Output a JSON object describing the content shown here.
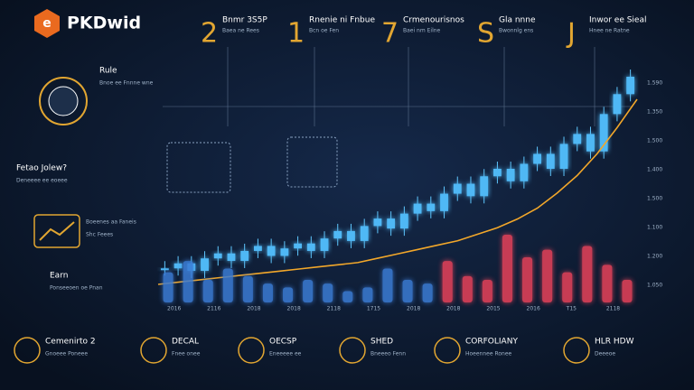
{
  "header": {
    "brand": "PKDwid"
  },
  "top_cards": [
    {
      "numeral": "2",
      "title": "Bnmr 3S5P",
      "text": "Baea ne Rees"
    },
    {
      "numeral": "1",
      "title": "Rnenie ni Fnbue",
      "text": "Bcn oe Fen"
    },
    {
      "numeral": "7",
      "title": "Crmenourisnos",
      "text": "Baei nm Eilne"
    },
    {
      "numeral": "S",
      "title": "Gla nnne",
      "text": "Bwonnlg ens"
    },
    {
      "numeral": "J",
      "title": "Inwor ee Sieal",
      "text": "Hnee ne Ratne"
    }
  ],
  "side": [
    {
      "title": "Rule",
      "text": "Bnoe ee Fnnne wne"
    },
    {
      "title": "Fetao Jolew?",
      "text": "Deneeee ee eoeee"
    },
    {
      "title": "Boeenes aa Faneis",
      "text": "Shc Feees"
    },
    {
      "title": "Earn",
      "text": "Ponseeoen oe Pnan"
    }
  ],
  "bottom": [
    {
      "title": "Cemenirto 2",
      "text": "Gnoeee Poneee"
    },
    {
      "title": "DECAL",
      "text": "Fnee onee"
    },
    {
      "title": "OECSP",
      "text": "Eneeeee ee"
    },
    {
      "title": "SHED",
      "text": "Bneeeo Fenn"
    },
    {
      "title": "CORFOLIANY",
      "text": "Hoeennee Ronee"
    },
    {
      "title": "HLR HDW",
      "text": "Deeeoe"
    }
  ],
  "axis_labels": [
    "1.590",
    "1.350",
    "1.500",
    "1.400",
    "1.500",
    "1.100",
    "1.200",
    "1.050"
  ],
  "x_labels": [
    "2016",
    "2116",
    "2018",
    "2018",
    "2118",
    "1715",
    "2018",
    "2018",
    "2015",
    "2016",
    "T15",
    "2118"
  ],
  "price": [
    18,
    20,
    17,
    22,
    24,
    21,
    25,
    27,
    23,
    26,
    28,
    25,
    30,
    33,
    29,
    35,
    38,
    34,
    40,
    44,
    41,
    48,
    52,
    47,
    55,
    58,
    53,
    60,
    64,
    58,
    68,
    72,
    65,
    80,
    88,
    95
  ],
  "trend": [
    10,
    11,
    12,
    13,
    14,
    15,
    16,
    17,
    18,
    19,
    20,
    22,
    24,
    26,
    28,
    30,
    33,
    36,
    40,
    45,
    52,
    60,
    70,
    82,
    95
  ],
  "volume": {
    "values": [
      40,
      55,
      30,
      45,
      35,
      25,
      20,
      30,
      25,
      15,
      20,
      45,
      30,
      25,
      55,
      35,
      30,
      90,
      60,
      70,
      40,
      75,
      50,
      30
    ],
    "colors": [
      "#3a7bd5",
      "#3a7bd5",
      "#3a7bd5",
      "#3a7bd5",
      "#3a7bd5",
      "#3a7bd5",
      "#3a7bd5",
      "#3a7bd5",
      "#3a7bd5",
      "#3a7bd5",
      "#3a7bd5",
      "#3a7bd5",
      "#3a7bd5",
      "#3a7bd5",
      "#e8435a",
      "#e8435a",
      "#e8435a",
      "#e8435a",
      "#e8435a",
      "#e8435a",
      "#e8435a",
      "#e8435a",
      "#e8435a",
      "#e8435a"
    ]
  }
}
